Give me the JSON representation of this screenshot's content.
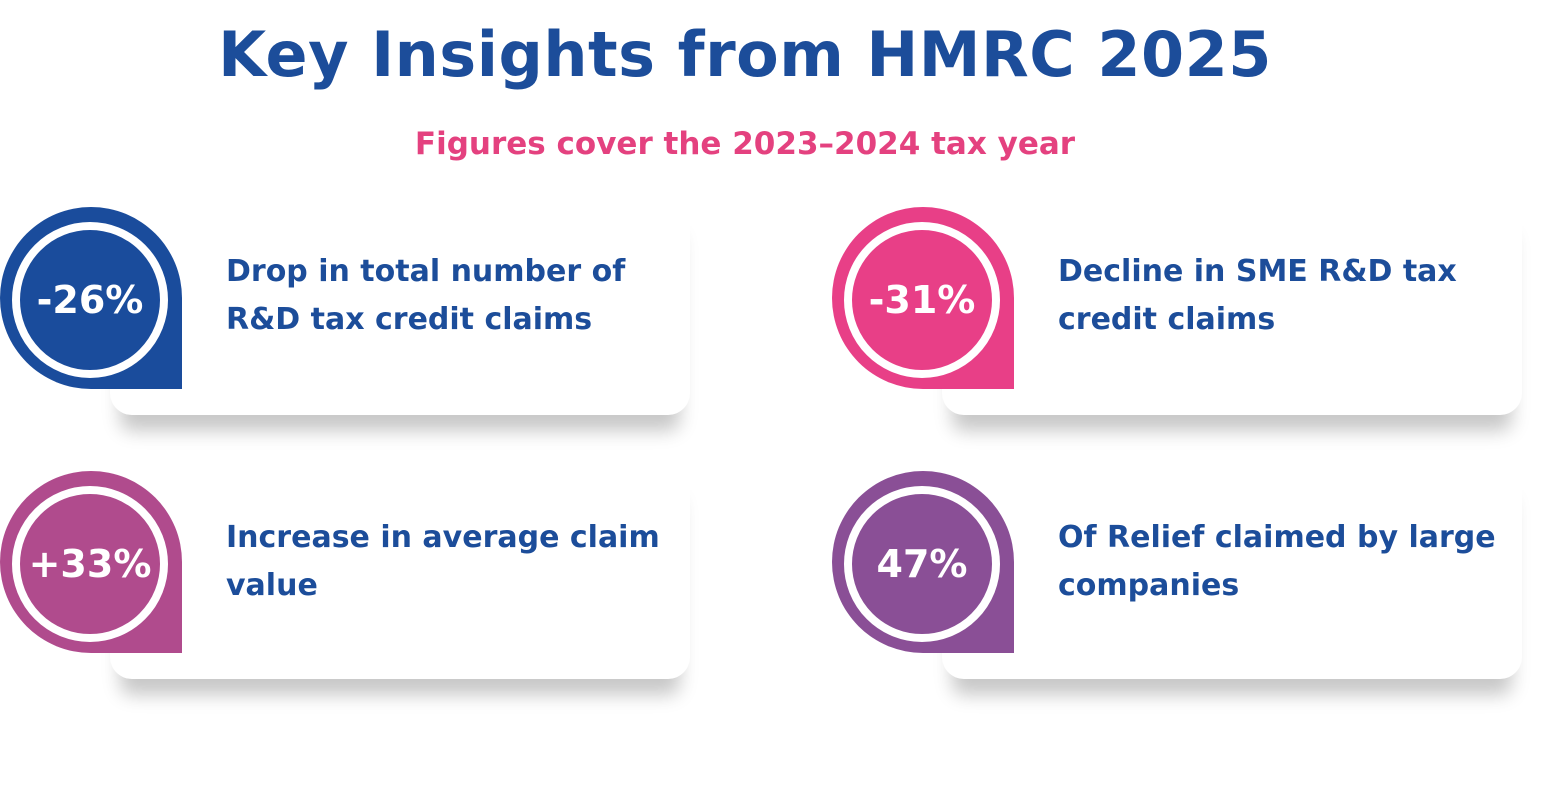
{
  "header": {
    "title": "Key Insights from HMRC 2025",
    "subtitle": "Figures cover the 2023–2024 tax year"
  },
  "insights": [
    {
      "value": "-26%",
      "description": "Drop in total number of R&D tax credit claims",
      "color": "#1a4c9c"
    },
    {
      "value": "-31%",
      "description": "Decline in SME R&D tax credit claims",
      "color": "#e83f87"
    },
    {
      "value": "+33%",
      "description": "Increase in average claim value",
      "color": "#b04b8d"
    },
    {
      "value": "47%",
      "description": "Of Relief claimed by large companies",
      "color": "#8a4f96"
    }
  ]
}
